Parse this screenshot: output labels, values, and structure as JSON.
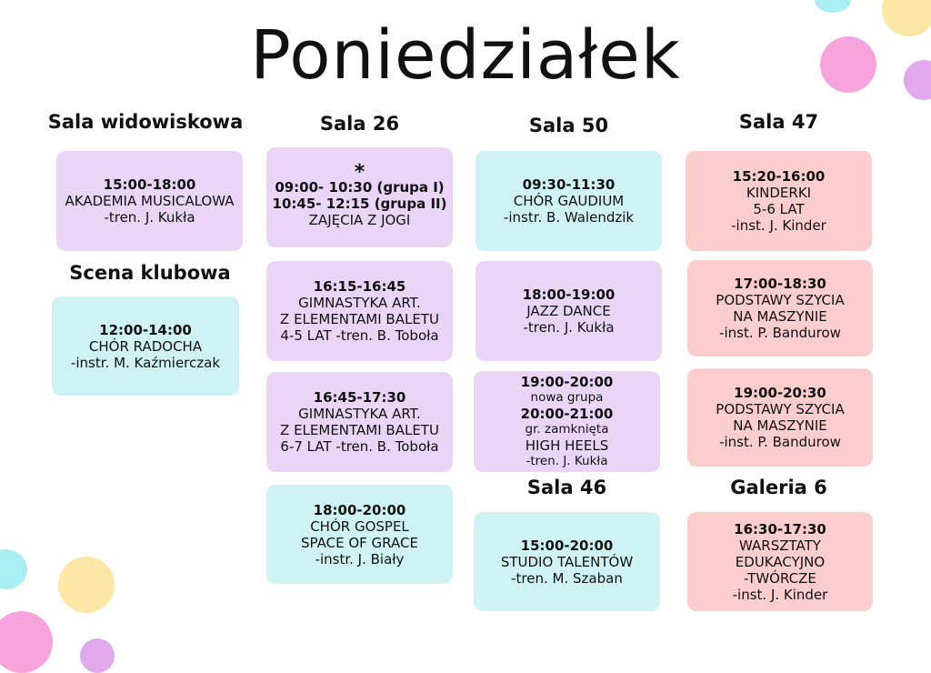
{
  "title": "Poniedziałek",
  "colors": {
    "purple_card": "#ead5f6",
    "cyan_card": "#cff2f4",
    "pink_card": "#fbcdcc"
  },
  "headings": {
    "sala_widowiskowa": "Sala widowiskowa",
    "scena_klubowa": "Scena klubowa",
    "sala_26": "Sala 26",
    "sala_50": "Sala 50",
    "sala_47": "Sala 47",
    "sala_46": "Sala 46",
    "galeria_6": "Galeria 6"
  },
  "cards": {
    "widowiskowa_1": {
      "time": "15:00-18:00",
      "name": "AKADEMIA MUSICALOWA",
      "trainer": "-tren. J. Kukła"
    },
    "klubowa_1": {
      "time": "12:00-14:00",
      "name": "CHÓR RADOCHA",
      "trainer": "-instr. M. Kaźmierczak"
    },
    "sala26_1": {
      "mark": "*",
      "time1": "09:00- 10:30 (grupa I)",
      "time2": "10:45- 12:15 (grupa II)",
      "name": "ZAJĘCIA Z JOGI"
    },
    "sala26_2": {
      "time": "16:15-16:45",
      "line1": "GIMNASTYKA ART.",
      "line2": "Z ELEMENTAMI BALETU",
      "line3": "4-5 LAT -tren. B. Toboła"
    },
    "sala26_3": {
      "time": "16:45-17:30",
      "line1": "GIMNASTYKA ART.",
      "line2": "Z ELEMENTAMI BALETU",
      "line3": "6-7 LAT -tren. B. Toboła"
    },
    "sala26_4": {
      "time": "18:00-20:00",
      "line1": "CHÓR GOSPEL",
      "line2": "SPACE OF GRACE",
      "trainer": "-instr. J. Biały"
    },
    "sala50_1": {
      "time": "09:30-11:30",
      "name": "CHÓR GAUDIUM",
      "trainer": "-instr. B. Walendzik"
    },
    "sala50_2": {
      "time": "18:00-19:00",
      "name": "JAZZ DANCE",
      "trainer": "-tren. J. Kukła"
    },
    "sala50_3": {
      "time1": "19:00-20:00",
      "note1": "nowa grupa",
      "time2": "20:00-21:00",
      "note2": "gr. zamknięta",
      "name": "HIGH HEELS",
      "trainer": "-tren. J. Kukła"
    },
    "sala46_1": {
      "time": "15:00-20:00",
      "name": "STUDIO TALENTÓW",
      "trainer": "-tren. M. Szaban"
    },
    "sala47_1": {
      "time": "15:20-16:00",
      "line1": "KINDERKI",
      "line2": "5-6 LAT",
      "trainer": "-inst. J. Kinder"
    },
    "sala47_2": {
      "time": "17:00-18:30",
      "line1": "PODSTAWY SZYCIA",
      "line2": "NA MASZYNIE",
      "trainer": "-inst. P. Bandurow"
    },
    "sala47_3": {
      "time": "19:00-20:30",
      "line1": "PODSTAWY SZYCIA",
      "line2": "NA MASZYNIE",
      "trainer": "-inst. P. Bandurow"
    },
    "galeria6_1": {
      "time": "16:30-17:30",
      "line1": "WARSZTATY",
      "line2": "EDUKACYJNO",
      "line3": "-TWÓRCZE",
      "trainer": "-inst. J. Kinder"
    }
  }
}
